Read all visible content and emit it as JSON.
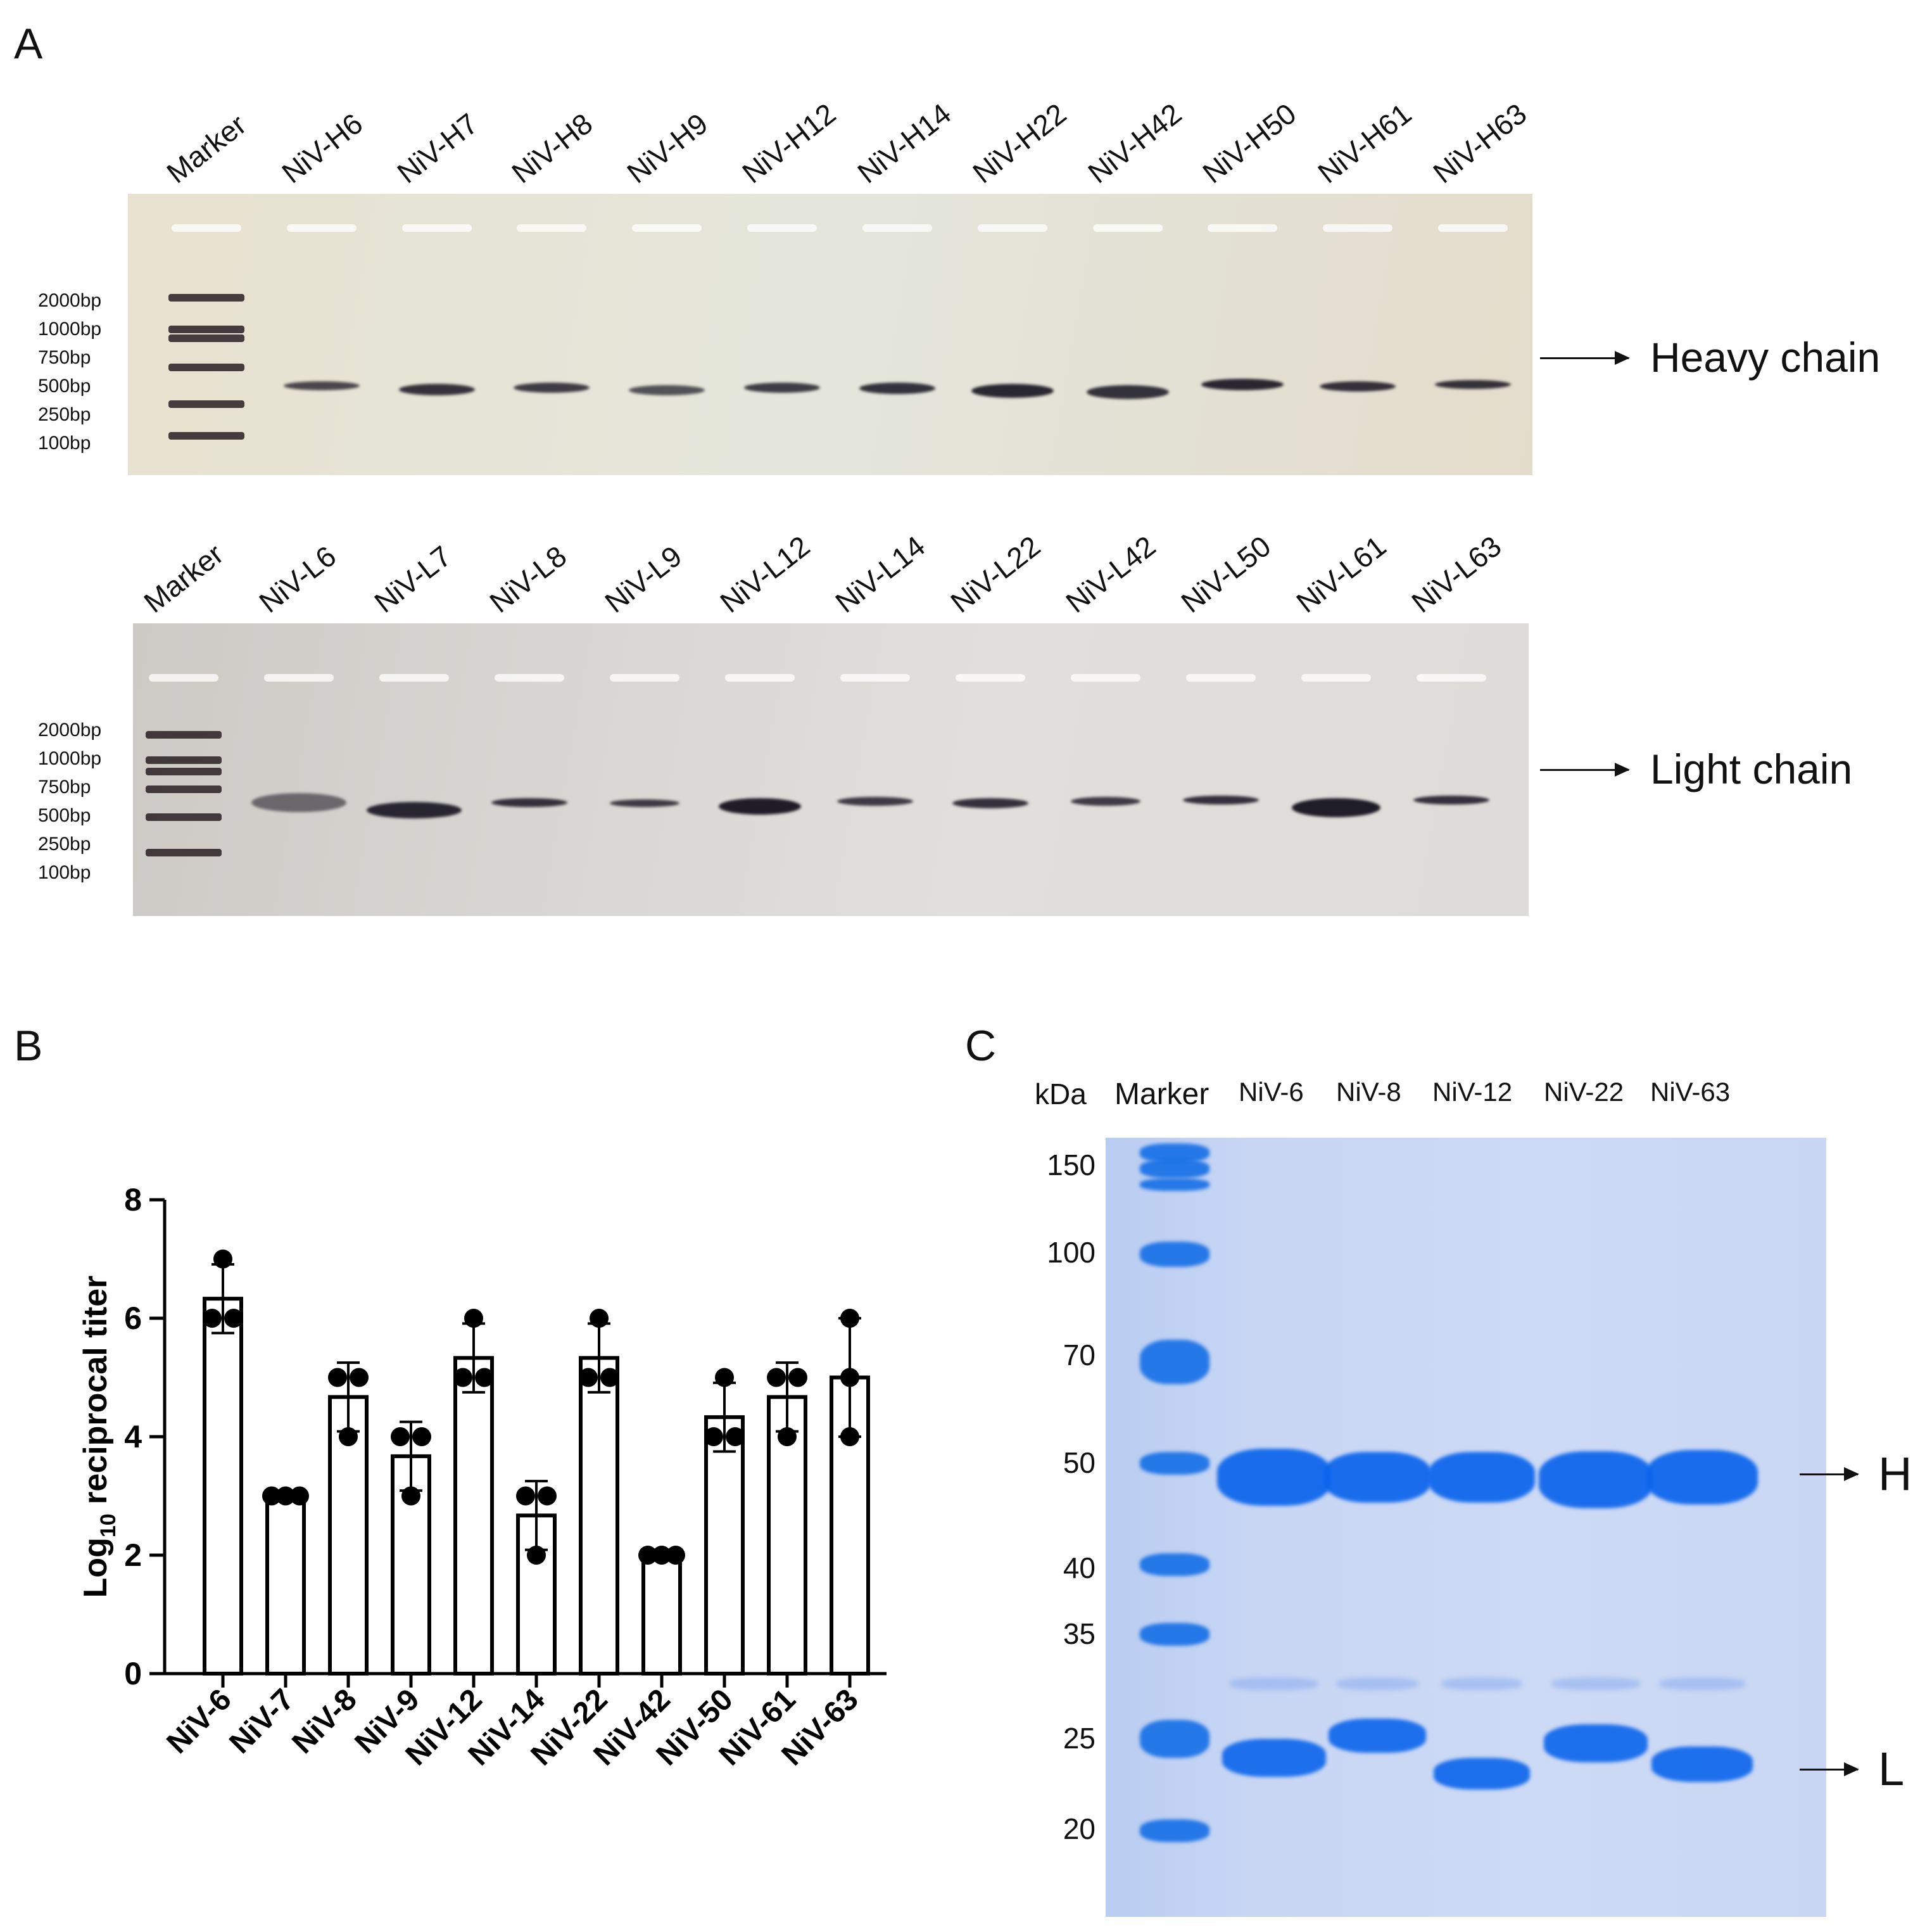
{
  "panelA": {
    "letter": "A",
    "heavy": {
      "lanes": [
        "Marker",
        "NiV-H6",
        "NiV-H7",
        "NiV-H8",
        "NiV-H9",
        "NiV-H12",
        "NiV-H14",
        "NiV-H22",
        "NiV-H42",
        "NiV-H50",
        "NiV-H61",
        "NiV-H63"
      ],
      "bp_ladder": [
        "2000bp",
        "1000bp",
        "750bp",
        "500bp",
        "250bp",
        "100bp"
      ],
      "chain_label": "Heavy chain"
    },
    "light": {
      "lanes": [
        "Marker",
        "NiV-L6",
        "NiV-L7",
        "NiV-L8",
        "NiV-L9",
        "NiV-L12",
        "NiV-L14",
        "NiV-L22",
        "NiV-L42",
        "NiV-L50",
        "NiV-L61",
        "NiV-L63"
      ],
      "bp_ladder": [
        "2000bp",
        "1000bp",
        "750bp",
        "500bp",
        "250bp",
        "100bp"
      ],
      "chain_label": "Light chain"
    }
  },
  "panelB": {
    "letter": "B",
    "ylabel_main": "Log",
    "ylabel_sub": "10",
    "ylabel_rest": " reciprocal titer"
  },
  "panelC": {
    "letter": "C",
    "unit": "kDa",
    "lanes": [
      "Marker",
      "NiV-6",
      "NiV-8",
      "NiV-12",
      "NiV-22",
      "NiV-63"
    ],
    "kda_markers": [
      "150",
      "100",
      "70",
      "50",
      "40",
      "35",
      "25",
      "20"
    ],
    "heavy_label": "H",
    "light_label": "L"
  },
  "chart_data": {
    "type": "bar",
    "categories": [
      "NiV-6",
      "NiV-7",
      "NiV-8",
      "NiV-9",
      "NiV-12",
      "NiV-14",
      "NiV-22",
      "NiV-42",
      "NiV-50",
      "NiV-61",
      "NiV-63"
    ],
    "values": [
      6.33,
      3.0,
      4.67,
      3.67,
      5.33,
      2.67,
      5.33,
      2.0,
      4.33,
      4.67,
      5.0
    ],
    "errors": [
      0.58,
      0.0,
      0.58,
      0.58,
      0.58,
      0.58,
      0.58,
      0.0,
      0.58,
      0.58,
      1.0
    ],
    "points": [
      [
        7,
        6,
        6
      ],
      [
        3,
        3,
        3
      ],
      [
        5,
        5,
        4
      ],
      [
        4,
        4,
        3
      ],
      [
        6,
        5,
        5
      ],
      [
        3,
        3,
        2
      ],
      [
        6,
        5,
        5
      ],
      [
        2,
        2,
        2
      ],
      [
        5,
        4,
        4
      ],
      [
        5,
        5,
        4
      ],
      [
        6,
        5,
        4
      ]
    ],
    "yticks": [
      "0",
      "2",
      "4",
      "6",
      "8"
    ],
    "ylim": [
      0,
      8
    ],
    "xlabel": "",
    "ylabel": "Log10 reciprocal titer"
  }
}
